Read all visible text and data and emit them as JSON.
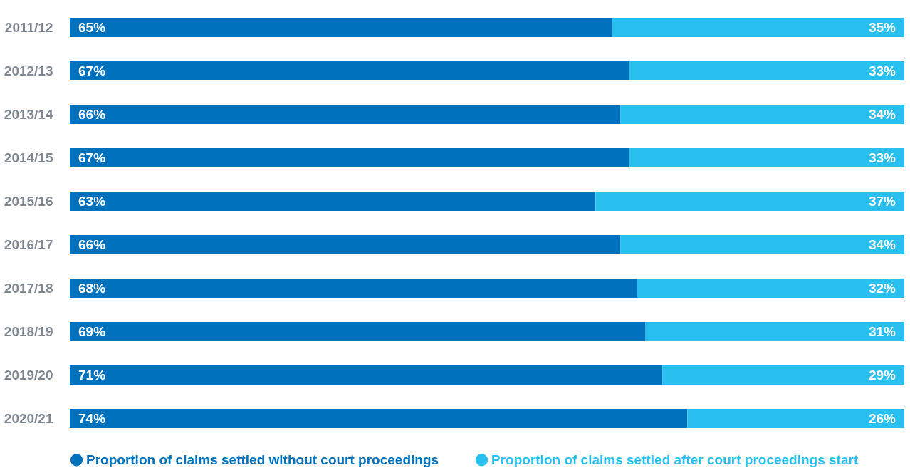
{
  "chart_data": {
    "type": "bar",
    "orientation": "horizontal",
    "stacked": true,
    "legend": "bottom",
    "categories": [
      "2011/12",
      "2012/13",
      "2013/14",
      "2014/15",
      "2015/16",
      "2016/17",
      "2017/18",
      "2018/19",
      "2019/20",
      "2020/21"
    ],
    "series": [
      {
        "name": "Proportion of claims settled without court proceedings",
        "color": "#0071bc",
        "values": [
          65,
          67,
          66,
          67,
          63,
          66,
          68,
          69,
          71,
          74
        ],
        "value_labels": [
          "65%",
          "67%",
          "66%",
          "67%",
          "63%",
          "66%",
          "68%",
          "69%",
          "71%",
          "74%"
        ]
      },
      {
        "name": "Proportion of claims settled after court proceedings start",
        "color": "#29c0ef",
        "values": [
          35,
          33,
          34,
          33,
          37,
          34,
          32,
          31,
          29,
          26
        ],
        "value_labels": [
          "35%",
          "33%",
          "34%",
          "33%",
          "37%",
          "34%",
          "32%",
          "31%",
          "29%",
          "26%"
        ]
      }
    ]
  }
}
